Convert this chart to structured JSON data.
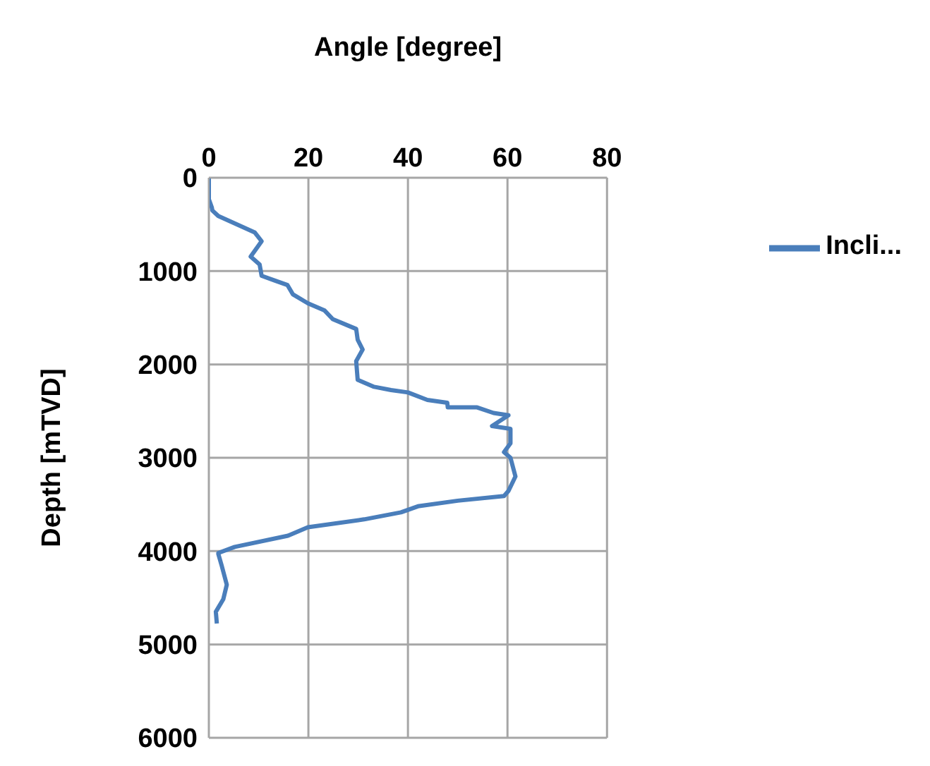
{
  "chart_data": {
    "type": "line",
    "xlabel": "Angle [degree]",
    "ylabel": "Depth [mTVD]",
    "xlim": [
      0,
      80
    ],
    "xticks": [
      0,
      20,
      40,
      60,
      80
    ],
    "ylim": [
      6000,
      0
    ],
    "yticks": [
      0,
      1000,
      2000,
      3000,
      4000,
      5000,
      6000
    ],
    "grid": true,
    "legend": "right",
    "marker": "none",
    "line_style": "solid",
    "series": [
      {
        "name": "Incli...",
        "color": "#4a7ebb",
        "x": [
          0,
          0,
          0.6,
          0.7,
          1.9,
          5.2,
          9.2,
          10.6,
          8.4,
          10.2,
          10.6,
          13.2,
          15.8,
          16.9,
          19.9,
          23.2,
          24.9,
          29.6,
          29.9,
          30.9,
          29.6,
          29.9,
          33.2,
          36.6,
          40,
          43.9,
          47.9,
          48,
          53.9,
          57.2,
          60.2,
          56.9,
          60.6,
          60.6,
          59.3,
          60.6,
          61.6,
          60.2,
          59.3,
          50,
          42,
          38.6,
          31.2,
          19.9,
          15.9,
          5.2,
          1.9,
          1.9,
          2.6,
          3.6,
          2.9,
          1.4,
          1.6
        ],
        "values": [
          0,
          230,
          320,
          350,
          410,
          490,
          585,
          680,
          845,
          930,
          1050,
          1100,
          1150,
          1250,
          1345,
          1420,
          1515,
          1620,
          1735,
          1840,
          1965,
          2165,
          2240,
          2275,
          2300,
          2380,
          2410,
          2460,
          2460,
          2520,
          2545,
          2660,
          2690,
          2845,
          2940,
          3000,
          3200,
          3355,
          3410,
          3460,
          3520,
          3585,
          3660,
          3745,
          3835,
          3955,
          4020,
          4030,
          4160,
          4360,
          4515,
          4650,
          4775
        ]
      }
    ]
  }
}
